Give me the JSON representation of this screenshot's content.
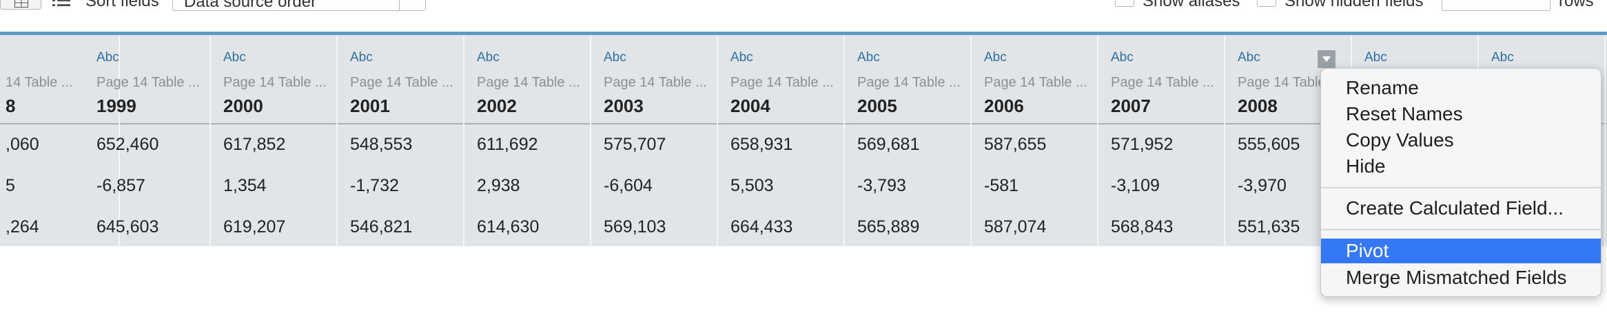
{
  "toolbar": {
    "sort_label": "Sort fields",
    "sort_value": "Data source order",
    "show_aliases_label": "Show aliases",
    "show_hidden_label": "Show hidden fields",
    "rows_value": "",
    "rows_label": "rows"
  },
  "columns": [
    {
      "type": "",
      "source": "14 Table ...",
      "name": "8",
      "values": [
        ",060",
        "5",
        ",264"
      ]
    },
    {
      "type": "Abc",
      "source": "Page  14 Table ...",
      "name": "1999",
      "values": [
        "652,460",
        "-6,857",
        "645,603"
      ]
    },
    {
      "type": "Abc",
      "source": "Page  14 Table ...",
      "name": "2000",
      "values": [
        "617,852",
        "1,354",
        "619,207"
      ]
    },
    {
      "type": "Abc",
      "source": "Page  14 Table ...",
      "name": "2001",
      "values": [
        "548,553",
        "-1,732",
        "546,821"
      ]
    },
    {
      "type": "Abc",
      "source": "Page  14 Table ...",
      "name": "2002",
      "values": [
        "611,692",
        "2,938",
        "614,630"
      ]
    },
    {
      "type": "Abc",
      "source": "Page  14 Table ...",
      "name": "2003",
      "values": [
        "575,707",
        "-6,604",
        "569,103"
      ]
    },
    {
      "type": "Abc",
      "source": "Page  14 Table ...",
      "name": "2004",
      "values": [
        "658,931",
        "5,503",
        "664,433"
      ]
    },
    {
      "type": "Abc",
      "source": "Page  14 Table ...",
      "name": "2005",
      "values": [
        "569,681",
        "-3,793",
        "565,889"
      ]
    },
    {
      "type": "Abc",
      "source": "Page  14 Table ...",
      "name": "2006",
      "values": [
        "587,655",
        "-581",
        "587,074"
      ]
    },
    {
      "type": "Abc",
      "source": "Page  14 Table ...",
      "name": "2007",
      "values": [
        "571,952",
        "-3,109",
        "568,843"
      ]
    },
    {
      "type": "Abc",
      "source": "Page  14 Table",
      "name": "2008",
      "values": [
        "555,605",
        "-3,970",
        "551,635"
      ]
    },
    {
      "type": "Abc",
      "source": "",
      "name": "",
      "values": [
        "",
        "",
        ""
      ]
    },
    {
      "type": "Abc",
      "source": "",
      "name": "",
      "values": [
        "",
        "",
        ""
      ]
    }
  ],
  "context_menu": {
    "items": [
      "Rename",
      "Reset Names",
      "Copy Values",
      "Hide",
      "Create Calculated Field...",
      "Pivot",
      "Merge Mismatched Fields"
    ],
    "highlighted": "Pivot"
  },
  "colors": {
    "grid_background": "#e1e5e8",
    "header_accent": "#5b9bc3",
    "type_label": "#2f6f9f",
    "menu_highlight": "#3478f6"
  }
}
